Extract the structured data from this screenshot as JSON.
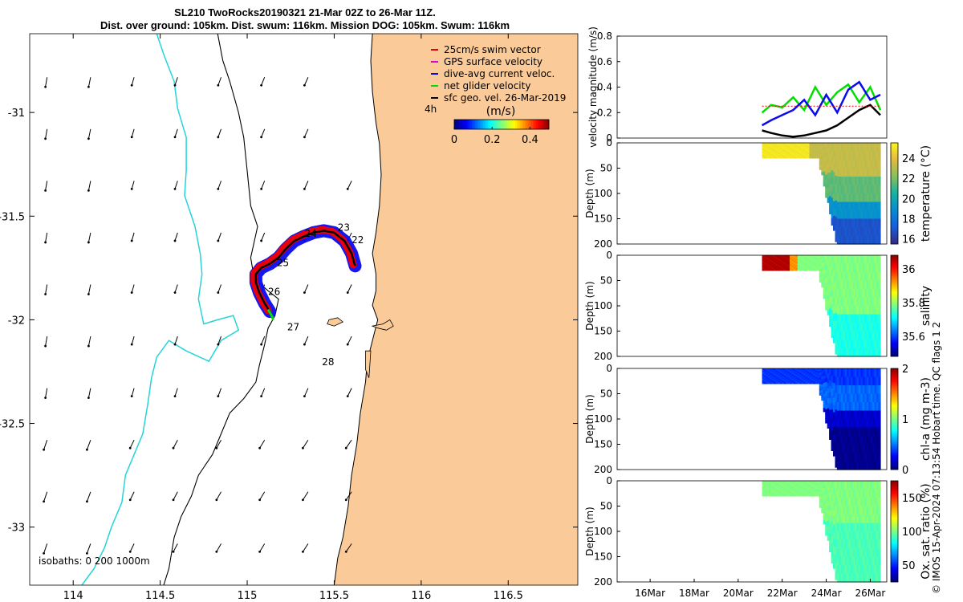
{
  "title": {
    "line1": "SL210 TwoRocks20190321 21-Mar 02Z to 26-Mar 11Z.",
    "line2": "Dist. over ground: 105km. Dist. swum: 116km. Mission DOG: 105km. Swum: 116km"
  },
  "stamp": "© IMOS 15-Apr-2024 07:13:54 Hobart time. QC flags 1  2",
  "colors": {
    "land": "#FACA98",
    "iso0": "#000000",
    "iso200": "#000000",
    "iso1000": "#26D4D8",
    "swim": "#E8000B",
    "gps": "#E000E0",
    "dive": "#0A0AEE",
    "net": "#00E000",
    "sfc": "#000000"
  },
  "chart_data": [
    {
      "type": "scatter",
      "name": "map",
      "xlim": [
        113.75,
        116.9
      ],
      "ylim": [
        -33.28,
        -30.62
      ],
      "xticks": [
        114,
        114.5,
        115,
        115.5,
        116,
        116.5
      ],
      "xtick_labels": [
        "114",
        "114.5",
        "115",
        "115.5",
        "116",
        "116.5"
      ],
      "yticks": [
        -31,
        -31.5,
        -32,
        -32.5,
        -33
      ],
      "ytick_labels": [
        "-31",
        "-31.5",
        "-32",
        "-32.5",
        "-33"
      ],
      "isobath_label": "isobaths: 0   200  1000m",
      "legend": {
        "position": "top-right",
        "entries": [
          "25cm/s swim vector",
          "GPS surface velocity",
          "dive-avg current veloc.",
          "net glider velocity",
          "sfc geo. vel. 26-Mar-2019"
        ]
      },
      "colorbar": {
        "prefix": "4h",
        "label": "(m/s)",
        "ticks": [
          0,
          0.2,
          0.4
        ],
        "tick_labels": [
          "0",
          "0.2",
          "0.4"
        ],
        "range": [
          0,
          0.5
        ]
      },
      "day_labels": [
        {
          "text": "22",
          "lon": 115.6,
          "lat": -31.63
        },
        {
          "text": "23",
          "lon": 115.52,
          "lat": -31.57
        },
        {
          "text": "24",
          "lon": 115.33,
          "lat": -31.6
        },
        {
          "text": "25",
          "lon": 115.17,
          "lat": -31.74
        },
        {
          "text": "26",
          "lon": 115.12,
          "lat": -31.88
        },
        {
          "text": "27",
          "lon": 115.23,
          "lat": -32.05
        },
        {
          "text": "28",
          "lon": 115.43,
          "lat": -32.22
        }
      ],
      "track": {
        "lon": [
          115.62,
          115.6,
          115.56,
          115.5,
          115.44,
          115.38,
          115.32,
          115.27,
          115.22,
          115.18,
          115.13,
          115.08,
          115.05,
          115.05,
          115.07,
          115.1,
          115.13
        ],
        "lat": [
          -31.74,
          -31.68,
          -31.62,
          -31.58,
          -31.57,
          -31.58,
          -31.6,
          -31.62,
          -31.66,
          -31.7,
          -31.73,
          -31.75,
          -31.78,
          -31.82,
          -31.87,
          -31.92,
          -31.96
        ]
      }
    },
    {
      "type": "line",
      "name": "velocity",
      "ylabel": "velocity magnitude (m/s)",
      "ylim": [
        0,
        0.8
      ],
      "yticks": [
        0,
        0.2,
        0.4,
        0.6,
        0.8
      ],
      "ytick_labels": [
        "0",
        "0.2",
        "0.4",
        "0.6",
        "0.8"
      ],
      "x_dates": [
        "2019-03-21T02:00",
        "2019-03-21T12:00",
        "2019-03-22T00:00",
        "2019-03-22T12:00",
        "2019-03-23T00:00",
        "2019-03-23T12:00",
        "2019-03-24T00:00",
        "2019-03-24T12:00",
        "2019-03-25T00:00",
        "2019-03-25T12:00",
        "2019-03-26T00:00",
        "2019-03-26T11:00"
      ],
      "series": [
        {
          "color": "#00E000",
          "values": [
            0.2,
            0.26,
            0.24,
            0.32,
            0.22,
            0.4,
            0.26,
            0.36,
            0.42,
            0.28,
            0.4,
            0.22
          ]
        },
        {
          "color": "#0A0AEE",
          "values": [
            0.1,
            0.14,
            0.18,
            0.22,
            0.3,
            0.18,
            0.34,
            0.2,
            0.38,
            0.44,
            0.3,
            0.34
          ]
        },
        {
          "color": "#000000",
          "values": [
            0.06,
            0.04,
            0.02,
            0.01,
            0.02,
            0.04,
            0.06,
            0.1,
            0.16,
            0.22,
            0.26,
            0.18
          ]
        },
        {
          "color": "#E8000B",
          "values": [
            0.25,
            0.25,
            0.25,
            0.25,
            0.25,
            0.25,
            0.25,
            0.25,
            0.25,
            0.25,
            0.25,
            0.25
          ]
        }
      ]
    },
    {
      "type": "heatmap",
      "name": "temperature",
      "ylabel": "Depth (m)",
      "clabel": "temperature (°C)",
      "ylim": [
        0,
        200
      ],
      "yticks": [
        0,
        50,
        100,
        150,
        200
      ],
      "ytick_labels": [
        "0",
        "50",
        "100",
        "150",
        "200"
      ],
      "cticks": [
        "16",
        "18",
        "20",
        "22",
        "24"
      ],
      "crange": [
        15.5,
        25.5
      ],
      "colormap": "parula"
    },
    {
      "type": "heatmap",
      "name": "salinity",
      "ylabel": "Depth (m)",
      "clabel": "salinity",
      "ylim": [
        0,
        200
      ],
      "yticks": [
        0,
        50,
        100,
        150,
        200
      ],
      "ytick_labels": [
        "0",
        "50",
        "100",
        "150",
        "200"
      ],
      "cticks": [
        "35.6",
        "35.8",
        "36"
      ],
      "crange": [
        35.48,
        36.08
      ],
      "colormap": "jet"
    },
    {
      "type": "heatmap",
      "name": "chl-a",
      "ylabel": "Depth (m)",
      "clabel": "chl-a (mg m-3)",
      "ylim": [
        0,
        200
      ],
      "yticks": [
        0,
        50,
        100,
        150,
        200
      ],
      "ytick_labels": [
        "0",
        "50",
        "100",
        "150",
        "200"
      ],
      "cticks": [
        "0",
        "1",
        "2"
      ],
      "crange": [
        0,
        2
      ],
      "colormap": "jet"
    },
    {
      "type": "heatmap",
      "name": "oxygen",
      "ylabel": "Depth (m)",
      "clabel": "Ox. sat. ratio (%)",
      "ylim": [
        0,
        200
      ],
      "yticks": [
        0,
        50,
        100,
        150,
        200
      ],
      "ytick_labels": [
        "0",
        "50",
        "100",
        "150",
        "200"
      ],
      "cticks": [
        "50",
        "100",
        "150"
      ],
      "crange": [
        25,
        175
      ],
      "colormap": "jet",
      "xtick_labels": [
        "16Mar",
        "18Mar",
        "20Mar",
        "22Mar",
        "24Mar",
        "26Mar"
      ],
      "xticks": [
        "2019-03-16",
        "2019-03-18",
        "2019-03-20",
        "2019-03-22",
        "2019-03-24",
        "2019-03-26"
      ],
      "xlim": [
        "2019-03-14T12:00",
        "2019-03-26T18:00"
      ]
    }
  ]
}
